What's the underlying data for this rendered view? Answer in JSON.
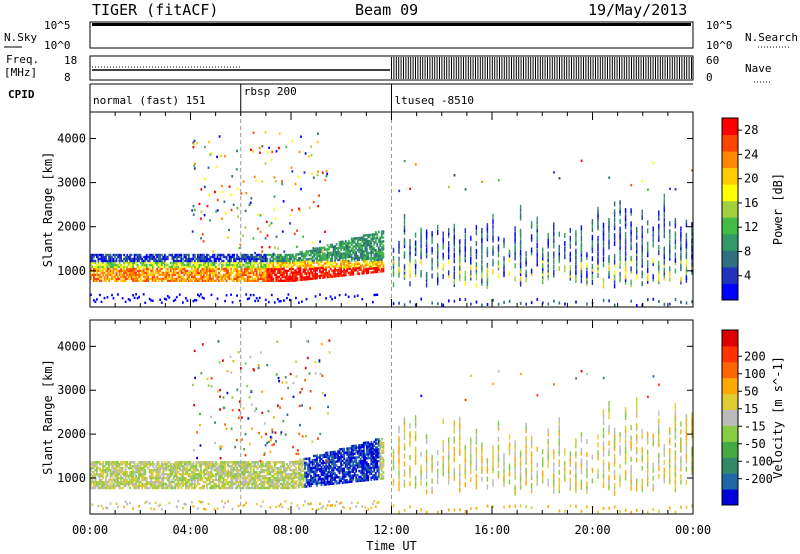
{
  "header": {
    "station": "TIGER (fitACF)",
    "beam": "Beam 09",
    "date": "19/May/2013"
  },
  "left_labels": {
    "nsky": "N.Sky",
    "freq_line1": "Freq.",
    "freq_line2": "[MHz]",
    "cpid": "CPID"
  },
  "right_labels": {
    "nsearch": "N.Search",
    "nave": "Nave"
  },
  "nsky_ticks": [
    "10^5",
    "10^0"
  ],
  "freq_ticks": [
    "18",
    "8"
  ],
  "nave_ticks": [
    "60",
    "0"
  ],
  "cpid_segments": [
    {
      "label": "normal (fast) 151",
      "start_h": 0,
      "end_h": 6
    },
    {
      "label": "rbsp 200",
      "start_h": 6,
      "end_h": 12
    },
    {
      "label": "ltuseq -8510",
      "start_h": 12,
      "end_h": 24
    }
  ],
  "chart_data": [
    {
      "type": "heatmap",
      "panel": "power",
      "ylabel": "Slant Range [km]",
      "xlabel": "Time UT",
      "x_ticks": [
        "00:00",
        "04:00",
        "08:00",
        "12:00",
        "16:00",
        "20:00",
        "00:00"
      ],
      "y_ticks": [
        1000,
        2000,
        3000,
        4000
      ],
      "ylim": [
        180,
        4600
      ],
      "xlim_hours": [
        0,
        24
      ],
      "colorbar": {
        "label": "Power [dB]",
        "ticks": [
          4,
          8,
          12,
          16,
          20,
          24,
          28
        ],
        "range": [
          0,
          30
        ],
        "colors": [
          "#0000ff",
          "#2233bb",
          "#2f6f7f",
          "#339966",
          "#44bb44",
          "#a0d040",
          "#ffff00",
          "#ffcc00",
          "#ff8800",
          "#ff4400",
          "#ff0000"
        ]
      }
    },
    {
      "type": "heatmap",
      "panel": "velocity",
      "ylabel": "Slant Range [km]",
      "xlabel": "Time UT",
      "x_ticks": [
        "00:00",
        "04:00",
        "08:00",
        "12:00",
        "16:00",
        "20:00",
        "00:00"
      ],
      "y_ticks": [
        1000,
        2000,
        3000,
        4000
      ],
      "ylim": [
        180,
        4600
      ],
      "xlim_hours": [
        0,
        24
      ],
      "colorbar": {
        "label": "Velocity [m s^-1]",
        "ticks": [
          200,
          100,
          50,
          15,
          -15,
          -50,
          -100,
          -200
        ],
        "colors": [
          "#0000dd",
          "#2266aa",
          "#338866",
          "#44aa44",
          "#88cc44",
          "#bbbbbb",
          "#ddcc33",
          "#ffaa00",
          "#ff6600",
          "#ff3300",
          "#dd0000"
        ]
      }
    }
  ],
  "time_axis_label": "Time UT"
}
